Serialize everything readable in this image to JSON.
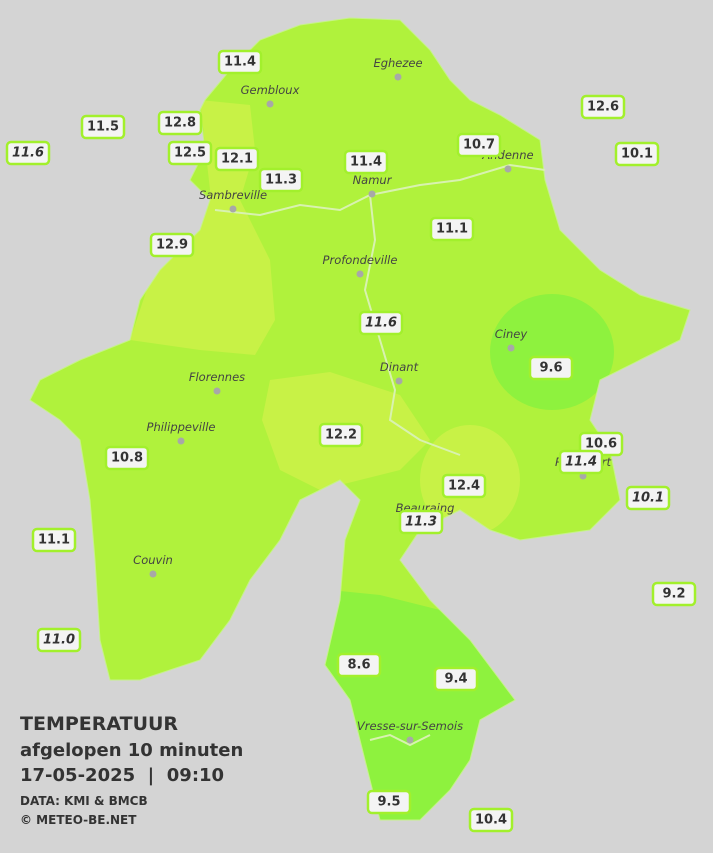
{
  "map": {
    "towns": [
      "Eghezee",
      "Gembloux",
      "Andenne",
      "Namur",
      "Sambreville",
      "Profondeville",
      "Ciney",
      "Dinant",
      "Florennes",
      "Philippeville",
      "Rochefort",
      "Beauraing",
      "Couvin",
      "Vresse-sur-Semois"
    ],
    "stations": [
      {
        "label": "11.4",
        "italic": false
      },
      {
        "label": "11.5",
        "italic": false
      },
      {
        "label": "11.6",
        "italic": true
      },
      {
        "label": "12.8",
        "italic": false
      },
      {
        "label": "12.5",
        "italic": false
      },
      {
        "label": "12.1",
        "italic": false
      },
      {
        "label": "11.3",
        "italic": false
      },
      {
        "label": "11.4",
        "italic": false
      },
      {
        "label": "10.7",
        "italic": false
      },
      {
        "label": "12.6",
        "italic": false
      },
      {
        "label": "10.1",
        "italic": false
      },
      {
        "label": "11.1",
        "italic": false
      },
      {
        "label": "12.9",
        "italic": false
      },
      {
        "label": "11.6",
        "italic": true
      },
      {
        "label": "9.6",
        "italic": false
      },
      {
        "label": "12.2",
        "italic": false
      },
      {
        "label": "10.6",
        "italic": false
      },
      {
        "label": "11.4",
        "italic": true
      },
      {
        "label": "10.8",
        "italic": false
      },
      {
        "label": "12.4",
        "italic": false
      },
      {
        "label": "10.1",
        "italic": true
      },
      {
        "label": "11.3",
        "italic": true
      },
      {
        "label": "11.1",
        "italic": false
      },
      {
        "label": "9.2",
        "italic": false
      },
      {
        "label": "11.0",
        "italic": true
      },
      {
        "label": "8.6",
        "italic": false
      },
      {
        "label": "9.4",
        "italic": false
      },
      {
        "label": "9.5",
        "italic": false
      },
      {
        "label": "10.4",
        "italic": false
      }
    ],
    "title": "TEMPERATUUR",
    "subtitle": "afgelopen 10 minuten",
    "datetime": "17-05-2025  |  09:10",
    "source": "DATA: KMI & BMCB",
    "credit": "© METEO-BE.NET"
  }
}
